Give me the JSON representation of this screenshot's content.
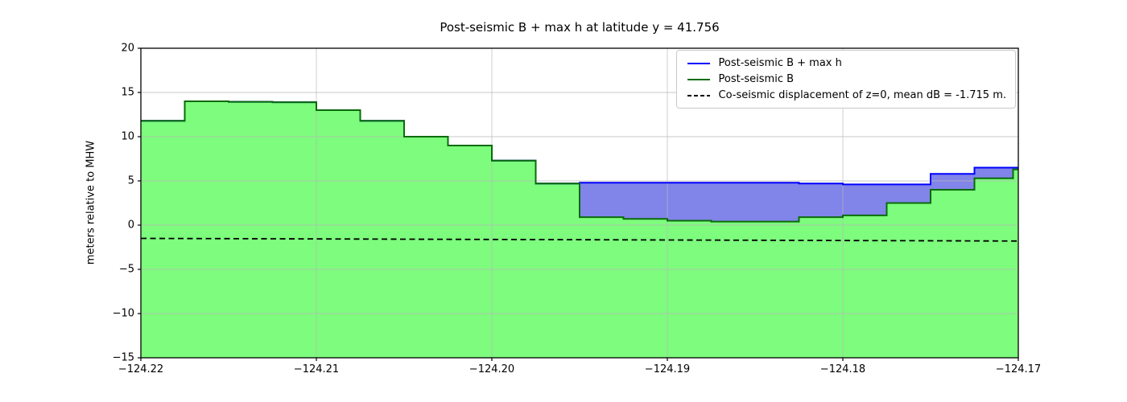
{
  "title": "Post-seismic B + max h at latitude y = 41.756",
  "ylabel": "meters relative to MHW",
  "legend": {
    "items": [
      {
        "label": "Post-seismic B + max h",
        "color": "#0000ff",
        "dash": false
      },
      {
        "label": "Post-seismic B",
        "color": "#0a6b0a",
        "dash": false
      },
      {
        "label": "Co-seismic displacement of z=0, mean dB = -1.715 m.",
        "color": "#000000",
        "dash": true
      }
    ]
  },
  "chart_data": {
    "type": "area",
    "title": "Post-seismic B + max h at latitude y = 41.756",
    "xlabel": "",
    "ylabel": "meters relative to MHW",
    "xlim": [
      -124.22,
      -124.17
    ],
    "ylim": [
      -15,
      20
    ],
    "grid": true,
    "legend_position": "upper right",
    "xticks": [
      -124.22,
      -124.21,
      -124.2,
      -124.19,
      -124.18,
      -124.17
    ],
    "xtick_labels": [
      "−124.22",
      "−124.21",
      "−124.20",
      "−124.19",
      "−124.18",
      "−124.17"
    ],
    "yticks": [
      20,
      15,
      10,
      5,
      0,
      -5,
      -10,
      -15
    ],
    "ytick_labels": [
      "20",
      "15",
      "10",
      "5",
      "0",
      "−5",
      "−10",
      "−15"
    ],
    "x_edges": [
      -124.22,
      -124.2175,
      -124.215,
      -124.2125,
      -124.21,
      -124.2075,
      -124.205,
      -124.2025,
      -124.2,
      -124.1975,
      -124.195,
      -124.1925,
      -124.19,
      -124.1875,
      -124.185,
      -124.1825,
      -124.18,
      -124.1775,
      -124.175,
      -124.1725,
      -124.1703,
      -124.17
    ],
    "series": [
      {
        "name": "Post-seismic B + max h",
        "color": "#0000ff",
        "values": [
          11.8,
          14.0,
          13.95,
          13.9,
          13.0,
          11.8,
          10.0,
          9.0,
          7.3,
          4.7,
          4.8,
          4.8,
          4.8,
          4.8,
          4.8,
          4.7,
          4.6,
          4.6,
          5.8,
          6.5,
          6.5
        ]
      },
      {
        "name": "Post-seismic B",
        "color": "#0a6b0a",
        "fill": "#7dfc7d",
        "values": [
          11.8,
          14.0,
          13.95,
          13.9,
          13.0,
          11.8,
          10.0,
          9.0,
          7.3,
          4.7,
          0.9,
          0.7,
          0.5,
          0.4,
          0.4,
          0.9,
          1.1,
          2.5,
          4.0,
          5.3,
          6.3
        ]
      }
    ],
    "fill_between_color": "#8184e8",
    "dashed_line": {
      "name": "Co-seismic displacement of z=0",
      "mean_dB_label": "mean dB = -1.715 m.",
      "x": [
        -124.22,
        -124.17
      ],
      "y": [
        -1.5,
        -1.8
      ],
      "color": "#000000"
    },
    "colors": {
      "grid": "#b8b8b8",
      "frame": "#000000",
      "background": "#ffffff"
    }
  }
}
